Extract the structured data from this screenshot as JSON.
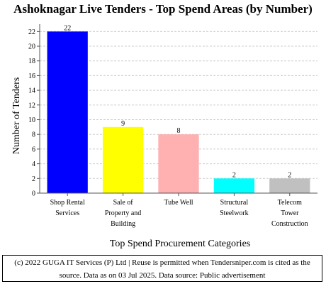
{
  "chart_data": {
    "type": "bar",
    "title": "Ashoknagar Live Tenders - Top Spend Areas (by Number)",
    "xlabel": "Top Spend Procurement Categories",
    "ylabel": "Number of Tenders",
    "ylim": [
      0,
      23
    ],
    "yticks": [
      0,
      2,
      4,
      6,
      8,
      10,
      12,
      14,
      16,
      18,
      20,
      22
    ],
    "grid": true,
    "categories": [
      [
        "Shop Rental",
        "Services"
      ],
      [
        "Sale of",
        "Property and",
        "Building"
      ],
      [
        "Tube Well"
      ],
      [
        "Structural",
        "Steelwork"
      ],
      [
        "Telecom",
        "Tower",
        "Construction"
      ]
    ],
    "values": [
      22,
      9,
      8,
      2,
      2
    ],
    "colors": [
      "#0000ff",
      "#ffff00",
      "#ffb0b0",
      "#00ffff",
      "#c0c0c0"
    ]
  },
  "footer": {
    "line1": "(c) 2022 GUGA IT Services (P) Ltd | Reuse is permitted when Tendersniper.com is cited as the",
    "line2": "source. Data as on 03 Jul 2025. Data source: Public advertisement"
  }
}
